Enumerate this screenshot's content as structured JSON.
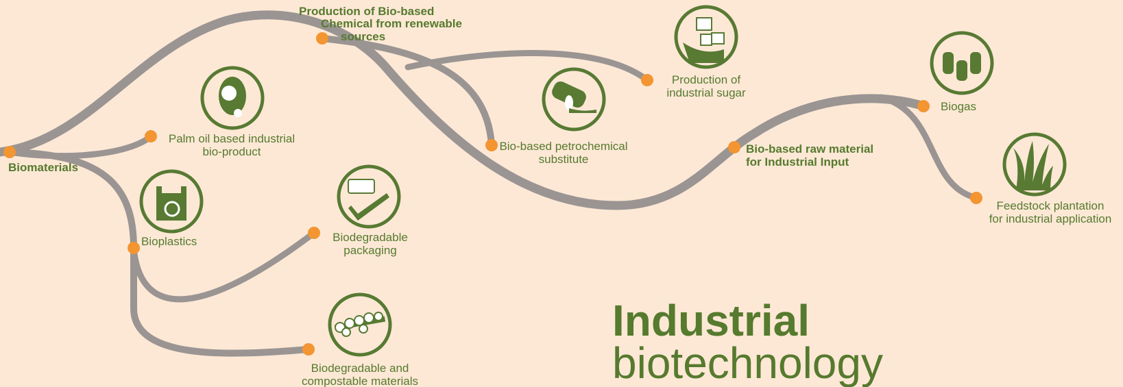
{
  "title": {
    "lines": [
      "Industrial",
      "biotechnology"
    ]
  },
  "nodes": [
    {
      "lines": [
        "Biomaterials"
      ]
    },
    {
      "lines": [
        "Palm oil based industrial",
        "bio-product"
      ]
    },
    {
      "lines": [
        "Bioplastics"
      ]
    },
    {
      "lines": [
        "Biodegradable",
        "packaging"
      ]
    },
    {
      "lines": [
        "Biodegradable and",
        "compostable materials"
      ]
    },
    {
      "lines": [
        "Production of Bio-based",
        "Chemical from renewable",
        "sources"
      ]
    },
    {
      "lines": [
        "Bio-based petrochemical",
        "substitute"
      ]
    },
    {
      "lines": [
        "Production of",
        "industrial sugar"
      ]
    },
    {
      "lines": [
        "Bio-based raw material",
        "for Industrial Input"
      ]
    },
    {
      "lines": [
        "Biogas"
      ]
    },
    {
      "lines": [
        "Feedstock plantation",
        "for industrial application"
      ]
    }
  ]
}
